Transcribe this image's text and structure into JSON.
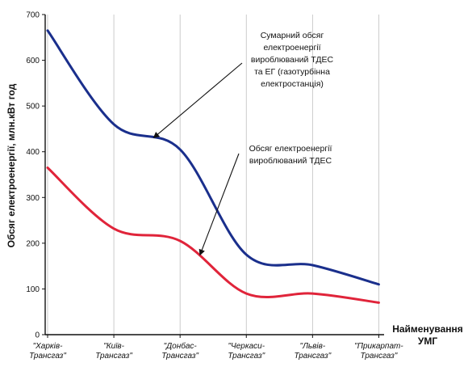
{
  "chart_data": {
    "type": "line",
    "categories": [
      [
        "\"Харків-",
        "Трансгаз\""
      ],
      [
        "\"Київ-",
        "Трансгаз\""
      ],
      [
        "\"Донбас-",
        "Трансгаз\""
      ],
      [
        "\"Черкаси-",
        "Трансгаз\""
      ],
      [
        "\"Львів-",
        "Трансгаз\""
      ],
      [
        "\"Прикарпат-",
        "Трансгаз\""
      ]
    ],
    "series": [
      {
        "color": "#1a2f8c",
        "values": [
          665,
          460,
          405,
          175,
          152,
          110
        ]
      },
      {
        "color": "#e0243a",
        "values": [
          365,
          232,
          205,
          90,
          90,
          70
        ]
      }
    ],
    "ylabel": "Обсяг електроенергії, млн.кВт год",
    "xlabel": [
      "Найменування",
      "УМГ"
    ],
    "ylim": [
      0,
      700
    ],
    "yticks": [
      0,
      100,
      200,
      300,
      400,
      500,
      600,
      700
    ],
    "grid": "vertical",
    "annotations": [
      {
        "lines": [
          "Сумарний обсяг",
          "електроенергії",
          "вироблюваний ТДЕС",
          "та ЕГ (газотурбінна",
          "електростанція)"
        ],
        "target_series": 0,
        "target_x": 1.6
      },
      {
        "lines": [
          "Обсяг електроенергії",
          "вироблюваний ТДЕС"
        ],
        "target_series": 1,
        "target_x": 2.3
      }
    ]
  }
}
